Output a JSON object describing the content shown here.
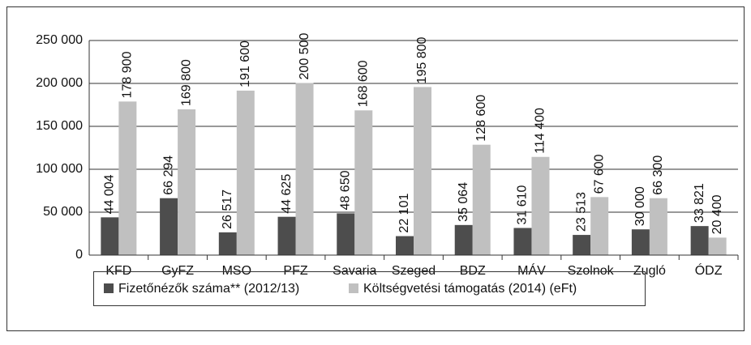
{
  "chart_data": {
    "type": "bar",
    "categories": [
      "KFD",
      "GyFZ",
      "MSO",
      "PFZ",
      "Savaria",
      "Szeged",
      "BDZ",
      "MÁV",
      "Szolnok",
      "Zugló",
      "ÓDZ"
    ],
    "series": [
      {
        "name": "Fizetőnézők száma** (2012/13)",
        "color": "#4d4d4d",
        "values": [
          44004,
          66294,
          26517,
          44625,
          48650,
          22101,
          35064,
          31610,
          23513,
          30000,
          33821
        ],
        "value_labels": [
          "44 004",
          "66 294",
          "26 517",
          "44 625",
          "48 650",
          "22 101",
          "35 064",
          "31 610",
          "23 513",
          "30 000",
          "33 821"
        ]
      },
      {
        "name": "Költségvetési támogatás (2014) (eFt)",
        "color": "#c0c0c0",
        "values": [
          178900,
          169800,
          191600,
          200500,
          168600,
          195800,
          128600,
          114400,
          67600,
          66300,
          20400
        ],
        "value_labels": [
          "178 900",
          "169 800",
          "191 600",
          "200 500",
          "168 600",
          "195 800",
          "128 600",
          "114 400",
          "67 600",
          "66 300",
          "20 400"
        ]
      }
    ],
    "ylim": [
      0,
      250000
    ],
    "yticks": [
      0,
      {
        "value": 50000,
        "label": "50 000"
      },
      {
        "value": 100000,
        "label": "100 000"
      },
      {
        "value": 150000,
        "label": "150 000"
      },
      {
        "value": 200000,
        "label": "200 000"
      },
      {
        "value": 250000,
        "label": "250 000"
      }
    ],
    "grid": true,
    "legend": "bottom"
  }
}
